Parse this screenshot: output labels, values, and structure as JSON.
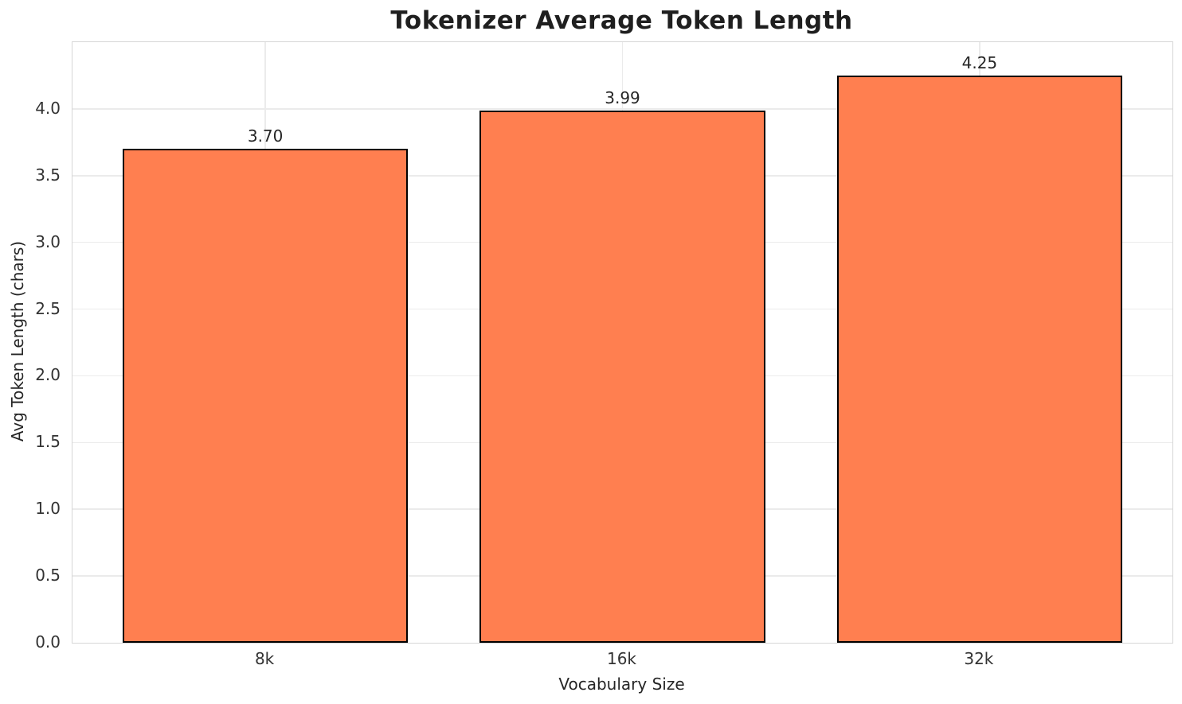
{
  "chart_data": {
    "type": "bar",
    "title": "Tokenizer Average Token Length",
    "xlabel": "Vocabulary Size",
    "ylabel": "Avg Token Length (chars)",
    "categories": [
      "8k",
      "16k",
      "32k"
    ],
    "values": [
      3.7,
      3.99,
      4.25
    ],
    "bar_value_labels": [
      "3.70",
      "3.99",
      "4.25"
    ],
    "ylim": [
      0,
      4.5
    ],
    "yticks": [
      0.0,
      0.5,
      1.0,
      1.5,
      2.0,
      2.5,
      3.0,
      3.5,
      4.0
    ],
    "ytick_labels": [
      "0.0",
      "0.5",
      "1.0",
      "1.5",
      "2.0",
      "2.5",
      "3.0",
      "3.5",
      "4.0"
    ],
    "grid": true,
    "legend": "none",
    "colors": {
      "bar_fill": "#FF7F50",
      "bar_edge": "#000000",
      "grid": "#EBEBEB",
      "frame": "#D6D6D6",
      "text": "#262626"
    }
  }
}
